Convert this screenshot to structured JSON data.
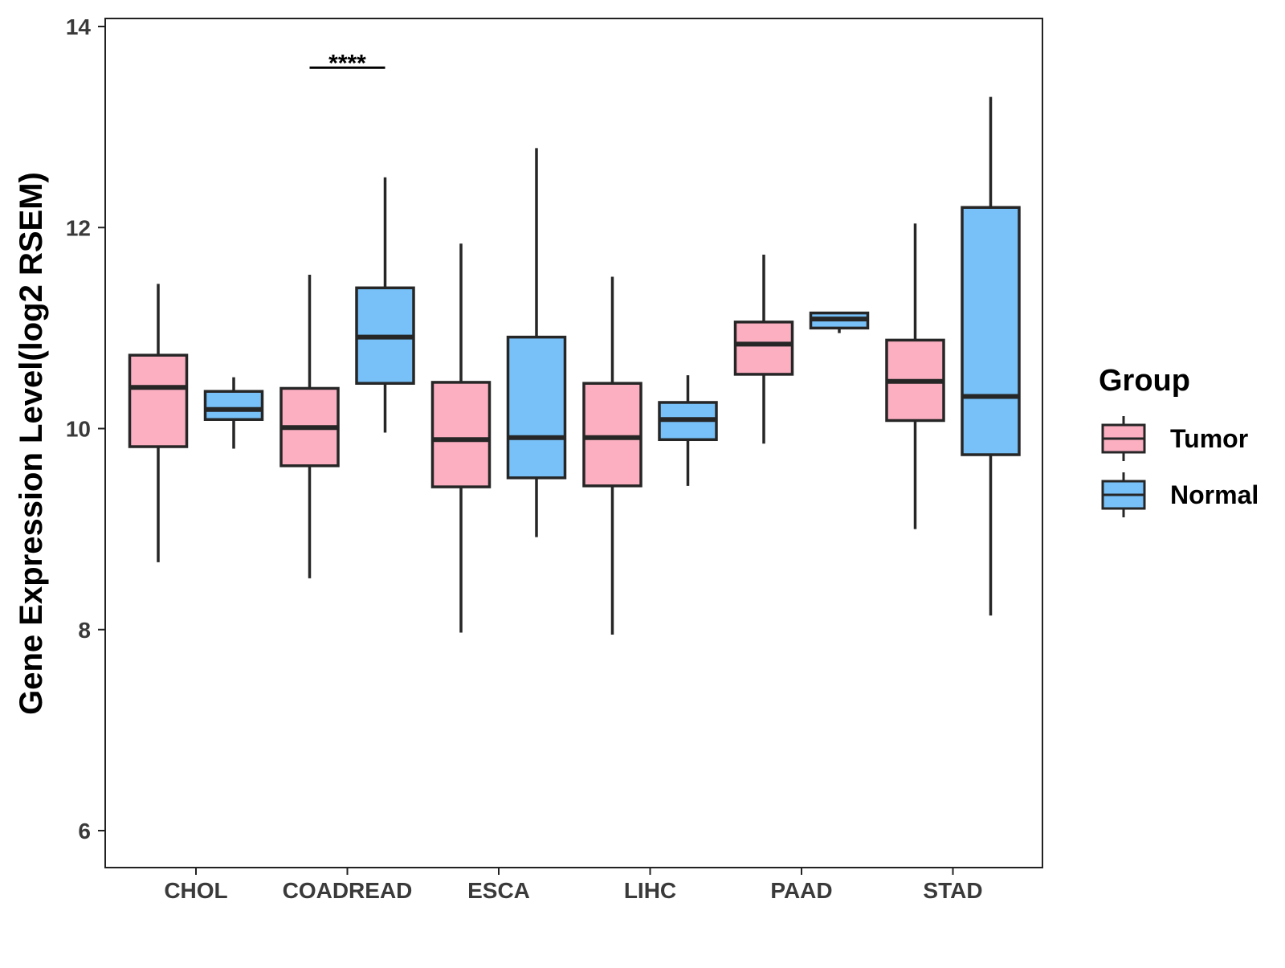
{
  "chart_data": {
    "type": "boxplot",
    "ylabel": "Gene Expression Level(log2 RSEM)",
    "xlabel": "",
    "ylim": [
      5.65,
      14.1
    ],
    "yticks": [
      6,
      8,
      10,
      12,
      14
    ],
    "categories": [
      "CHOL",
      "COADREAD",
      "ESCA",
      "LIHC",
      "PAAD",
      "STAD"
    ],
    "legend": {
      "title": "Group",
      "position": "right",
      "items": [
        {
          "label": "Tumor",
          "color": "#FBAFC1"
        },
        {
          "label": "Normal",
          "color": "#77C0F8"
        }
      ]
    },
    "series": [
      {
        "name": "Tumor",
        "color": "#FBAFC1",
        "boxes": [
          {
            "category": "CHOL",
            "min": 8.67,
            "q1": 9.82,
            "median": 10.41,
            "q3": 10.73,
            "max": 11.44
          },
          {
            "category": "COADREAD",
            "min": 8.51,
            "q1": 9.63,
            "median": 10.01,
            "q3": 10.4,
            "max": 11.53
          },
          {
            "category": "ESCA",
            "min": 7.97,
            "q1": 9.42,
            "median": 9.89,
            "q3": 10.46,
            "max": 11.84
          },
          {
            "category": "LIHC",
            "min": 7.95,
            "q1": 9.43,
            "median": 9.91,
            "q3": 10.45,
            "max": 11.51
          },
          {
            "category": "PAAD",
            "min": 9.85,
            "q1": 10.54,
            "median": 10.84,
            "q3": 11.06,
            "max": 11.73
          },
          {
            "category": "STAD",
            "min": 9.0,
            "q1": 10.08,
            "median": 10.47,
            "q3": 10.88,
            "max": 12.04
          }
        ]
      },
      {
        "name": "Normal",
        "color": "#77C0F8",
        "boxes": [
          {
            "category": "CHOL",
            "min": 9.8,
            "q1": 10.09,
            "median": 10.19,
            "q3": 10.37,
            "max": 10.51
          },
          {
            "category": "COADREAD",
            "min": 9.96,
            "q1": 10.45,
            "median": 10.91,
            "q3": 11.4,
            "max": 12.5
          },
          {
            "category": "ESCA",
            "min": 8.92,
            "q1": 9.51,
            "median": 9.91,
            "q3": 10.91,
            "max": 12.79
          },
          {
            "category": "LIHC",
            "min": 9.43,
            "q1": 9.89,
            "median": 10.09,
            "q3": 10.26,
            "max": 10.53
          },
          {
            "category": "PAAD",
            "min": 10.95,
            "q1": 11.0,
            "median": 11.09,
            "q3": 11.15,
            "max": 11.15
          },
          {
            "category": "STAD",
            "min": 8.14,
            "q1": 9.74,
            "median": 10.32,
            "q3": 12.2,
            "max": 13.3
          }
        ]
      }
    ],
    "annotations": [
      {
        "category": "COADREAD",
        "text": "****",
        "y": 13.67
      }
    ],
    "grid": false
  }
}
